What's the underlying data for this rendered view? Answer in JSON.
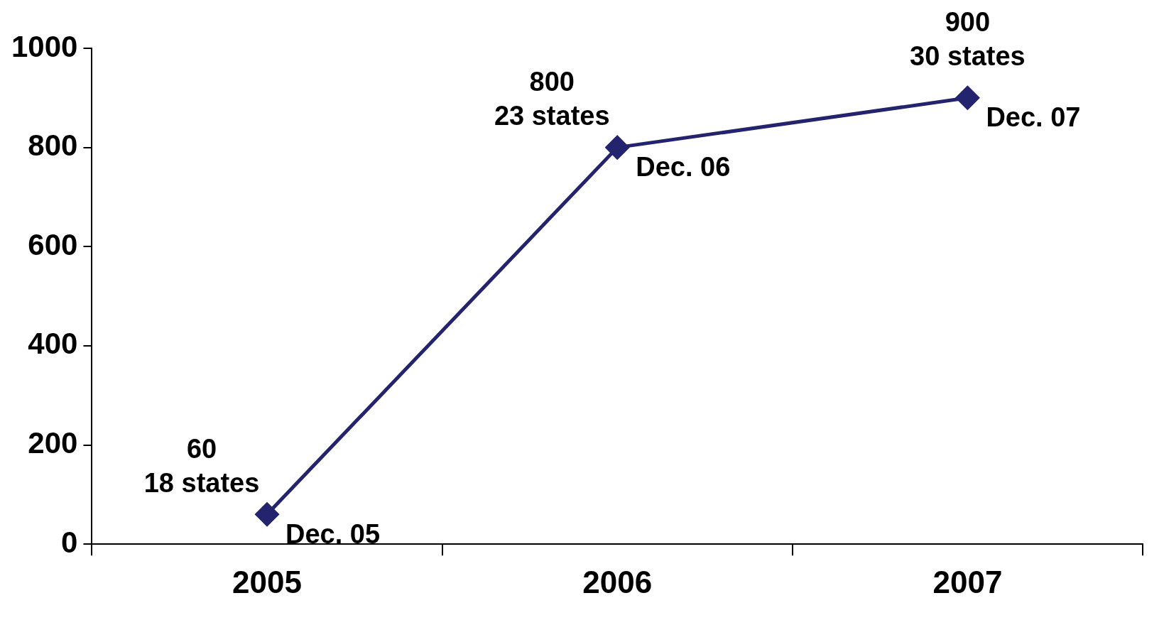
{
  "chart_data": {
    "type": "line",
    "categories": [
      "2005",
      "2006",
      "2007"
    ],
    "series": [
      {
        "color": "#23236e",
        "values": [
          60,
          800,
          900
        ],
        "value_labels": [
          "60",
          "800",
          "900"
        ]
      }
    ],
    "ylim": [
      0,
      1000
    ],
    "yticks": [
      0,
      200,
      400,
      600,
      800,
      1000
    ],
    "grid": false,
    "legend": false,
    "marker": "diamond",
    "line_style": "solid",
    "annotations": [
      {
        "text": "18 states",
        "x": "2005",
        "y": 60
      },
      {
        "text": "Dec. 05",
        "x": "2005",
        "y": 60
      },
      {
        "text": "23 states",
        "x": "2006",
        "y": 800
      },
      {
        "text": "Dec. 06",
        "x": "2006",
        "y": 800
      },
      {
        "text": "30 states",
        "x": "2007",
        "y": 900
      },
      {
        "text": "Dec. 07",
        "x": "2007",
        "y": 900
      }
    ]
  }
}
